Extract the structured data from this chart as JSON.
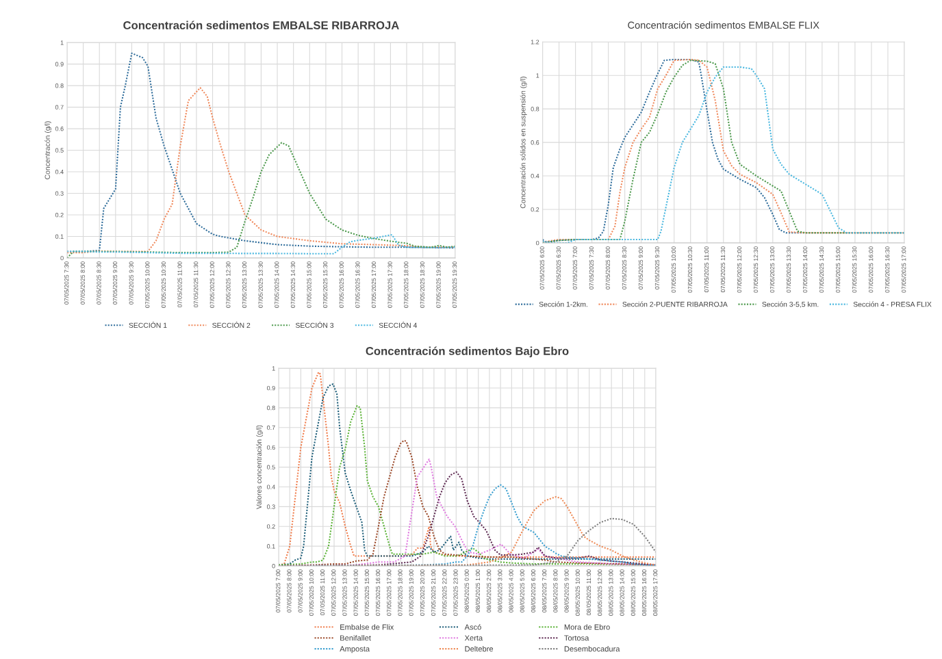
{
  "chart_data": [
    {
      "type": "line",
      "title": "Concentración sedimentos EMBALSE RIBARROJA",
      "ylabel": "Concentracón (g/l)",
      "xlim": [
        "2025-05-07T07:30",
        "2025-05-07T19:30"
      ],
      "ylim": [
        0,
        1
      ],
      "yticks": [
        0,
        0.1,
        0.2,
        0.3,
        0.4,
        0.5,
        0.6,
        0.7,
        0.8,
        0.9,
        1
      ],
      "xticks": [
        {
          "value": "2025-05-07T07:30",
          "label": "07/05/2025 7:30"
        },
        {
          "value": "2025-05-07T08:00",
          "label": "07/05/2025 8:00"
        },
        {
          "value": "2025-05-07T08:30",
          "label": "07/05/2025 8:30"
        },
        {
          "value": "2025-05-07T09:00",
          "label": "07/05/2025 9:00"
        },
        {
          "value": "2025-05-07T09:30",
          "label": "07/05/2025 9:30"
        },
        {
          "value": "2025-05-07T10:00",
          "label": "07/05/2025 10:00"
        },
        {
          "value": "2025-05-07T10:30",
          "label": "07/05/2025 10:30"
        },
        {
          "value": "2025-05-07T11:00",
          "label": "07/05/2025 11:00"
        },
        {
          "value": "2025-05-07T11:30",
          "label": "07/05/2025 11:30"
        },
        {
          "value": "2025-05-07T12:00",
          "label": "07/05/2025 12:00"
        },
        {
          "value": "2025-05-07T12:30",
          "label": "07/05/2025 12:30"
        },
        {
          "value": "2025-05-07T13:00",
          "label": "07/05/2025 13:00"
        },
        {
          "value": "2025-05-07T13:30",
          "label": "07/05/2025 13:30"
        },
        {
          "value": "2025-05-07T14:00",
          "label": "07/05/2025 14:00"
        },
        {
          "value": "2025-05-07T14:30",
          "label": "07/05/2025 14:30"
        },
        {
          "value": "2025-05-07T15:00",
          "label": "07/05/2025 15:00"
        },
        {
          "value": "2025-05-07T15:30",
          "label": "07/05/2025 15:30"
        },
        {
          "value": "2025-05-07T16:00",
          "label": "07/05/2025 16:00"
        },
        {
          "value": "2025-05-07T16:30",
          "label": "07/05/2025 16:30"
        },
        {
          "value": "2025-05-07T17:00",
          "label": "07/05/2025 17:00"
        },
        {
          "value": "2025-05-07T17:30",
          "label": "07/05/2025 17:30"
        },
        {
          "value": "2025-05-07T18:00",
          "label": "07/05/2025 18:00"
        },
        {
          "value": "2025-05-07T18:30",
          "label": "07/05/2025 18:30"
        },
        {
          "value": "2025-05-07T19:00",
          "label": "07/05/2025 19:00"
        },
        {
          "value": "2025-05-07T19:30",
          "label": "07/05/2025 19:30"
        }
      ],
      "grid": true,
      "legend": "bottom",
      "marker": "none",
      "line_style": "dotted",
      "series": [
        {
          "name": "SECCIÓN 1",
          "color": "#2f6d9b",
          "x": [
            "2025-05-07T07:30",
            "2025-05-07T08:00",
            "2025-05-07T08:30",
            "2025-05-07T08:38",
            "2025-05-07T09:00",
            "2025-05-07T09:09",
            "2025-05-07T09:18",
            "2025-05-07T09:30",
            "2025-05-07T09:50",
            "2025-05-07T10:00",
            "2025-05-07T10:15",
            "2025-05-07T10:30",
            "2025-05-07T11:00",
            "2025-05-07T11:30",
            "2025-05-07T12:00",
            "2025-05-07T12:15",
            "2025-05-07T13:00",
            "2025-05-07T14:00",
            "2025-05-07T15:00",
            "2025-05-07T16:00",
            "2025-05-07T17:00",
            "2025-05-07T18:00",
            "2025-05-07T19:00",
            "2025-05-07T19:30"
          ],
          "values": [
            0.03,
            0.03,
            0.035,
            0.23,
            0.32,
            0.7,
            0.8,
            0.95,
            0.93,
            0.89,
            0.65,
            0.52,
            0.3,
            0.16,
            0.11,
            0.1,
            0.08,
            0.062,
            0.055,
            0.052,
            0.05,
            0.05,
            0.048,
            0.047
          ]
        },
        {
          "name": "SECCIÓN 2",
          "color": "#f08a5d",
          "x": [
            "2025-05-07T07:30",
            "2025-05-07T08:00",
            "2025-05-07T08:30",
            "2025-05-07T09:00",
            "2025-05-07T09:30",
            "2025-05-07T10:00",
            "2025-05-07T10:15",
            "2025-05-07T10:30",
            "2025-05-07T10:45",
            "2025-05-07T11:00",
            "2025-05-07T11:15",
            "2025-05-07T11:37",
            "2025-05-07T11:50",
            "2025-05-07T12:00",
            "2025-05-07T12:15",
            "2025-05-07T12:30",
            "2025-05-07T13:00",
            "2025-05-07T13:30",
            "2025-05-07T14:00",
            "2025-05-07T14:30",
            "2025-05-07T15:00",
            "2025-05-07T15:30",
            "2025-05-07T16:00",
            "2025-05-07T17:00",
            "2025-05-07T18:00",
            "2025-05-07T18:30",
            "2025-05-07T19:00",
            "2025-05-07T19:30"
          ],
          "values": [
            0.025,
            0.025,
            0.032,
            0.03,
            0.03,
            0.03,
            0.08,
            0.18,
            0.25,
            0.52,
            0.73,
            0.79,
            0.75,
            0.65,
            0.52,
            0.4,
            0.2,
            0.13,
            0.1,
            0.09,
            0.08,
            0.073,
            0.066,
            0.062,
            0.057,
            0.05,
            0.05,
            0.05
          ]
        },
        {
          "name": "SECCIÓN 3",
          "color": "#4e9a4e",
          "x": [
            "2025-05-07T07:30",
            "2025-05-07T07:42",
            "2025-05-07T08:00",
            "2025-05-07T09:00",
            "2025-05-07T10:00",
            "2025-05-07T11:00",
            "2025-05-07T12:00",
            "2025-05-07T12:30",
            "2025-05-07T12:45",
            "2025-05-07T13:00",
            "2025-05-07T13:15",
            "2025-05-07T13:30",
            "2025-05-07T13:45",
            "2025-05-07T14:08",
            "2025-05-07T14:21",
            "2025-05-07T14:30",
            "2025-05-07T15:00",
            "2025-05-07T15:30",
            "2025-05-07T16:00",
            "2025-05-07T16:30",
            "2025-05-07T17:00",
            "2025-05-07T17:30",
            "2025-05-07T18:00",
            "2025-05-07T18:15",
            "2025-05-07T18:45",
            "2025-05-07T19:00",
            "2025-05-07T19:15",
            "2025-05-07T19:30"
          ],
          "values": [
            0,
            0.03,
            0.03,
            0.03,
            0.028,
            0.025,
            0.025,
            0.027,
            0.05,
            0.17,
            0.28,
            0.4,
            0.48,
            0.535,
            0.52,
            0.47,
            0.3,
            0.18,
            0.13,
            0.105,
            0.09,
            0.078,
            0.068,
            0.055,
            0.05,
            0.058,
            0.05,
            0.055
          ]
        },
        {
          "name": "SECCIÓN 4",
          "color": "#4bb8e0",
          "x": [
            "2025-05-07T07:30",
            "2025-05-07T08:00",
            "2025-05-07T08:30",
            "2025-05-07T09:00",
            "2025-05-07T10:00",
            "2025-05-07T11:00",
            "2025-05-07T12:00",
            "2025-05-07T13:00",
            "2025-05-07T14:00",
            "2025-05-07T15:00",
            "2025-05-07T15:45",
            "2025-05-07T16:00",
            "2025-05-07T16:15",
            "2025-05-07T16:30",
            "2025-05-07T17:00",
            "2025-05-07T17:30",
            "2025-05-07T17:33",
            "2025-05-07T17:45",
            "2025-05-07T18:00",
            "2025-05-07T19:00",
            "2025-05-07T19:30"
          ],
          "values": [
            0.03,
            0.03,
            0.028,
            0.028,
            0.025,
            0.022,
            0.022,
            0.021,
            0.021,
            0.02,
            0.02,
            0.05,
            0.075,
            0.082,
            0.092,
            0.107,
            0.107,
            0.06,
            0.05,
            0.048,
            0.05
          ]
        }
      ]
    },
    {
      "type": "line",
      "title": "Concentración sedimentos EMBALSE FLIX",
      "ylabel": "Concentración sólidos en suspensión (g/l)",
      "xlim": [
        "2025-05-07T06:00",
        "2025-05-07T17:00"
      ],
      "ylim": [
        0,
        1.2
      ],
      "yticks": [
        0,
        0.2,
        0.4,
        0.6,
        0.8,
        1,
        1.2
      ],
      "xticks": [
        {
          "value": "2025-05-07T06:00",
          "label": "07/05/2025 6:00"
        },
        {
          "value": "2025-05-07T06:30",
          "label": "07/05/2025 6:30"
        },
        {
          "value": "2025-05-07T07:00",
          "label": "07/05/2025 7:00"
        },
        {
          "value": "2025-05-07T07:30",
          "label": "07/05/2025 7:30"
        },
        {
          "value": "2025-05-07T08:00",
          "label": "07/05/2025 8:00"
        },
        {
          "value": "2025-05-07T08:30",
          "label": "07/05/2025 8:30"
        },
        {
          "value": "2025-05-07T09:00",
          "label": "07/05/2025 9:00"
        },
        {
          "value": "2025-05-07T09:30",
          "label": "07/05/2025 9:30"
        },
        {
          "value": "2025-05-07T10:00",
          "label": "07/05/2025 10:00"
        },
        {
          "value": "2025-05-07T10:30",
          "label": "07/05/2025 10:30"
        },
        {
          "value": "2025-05-07T11:00",
          "label": "07/05/2025 11:00"
        },
        {
          "value": "2025-05-07T11:30",
          "label": "07/05/2025 11:30"
        },
        {
          "value": "2025-05-07T12:00",
          "label": "07/05/2025 12:00"
        },
        {
          "value": "2025-05-07T12:30",
          "label": "07/05/2025 12:30"
        },
        {
          "value": "2025-05-07T13:00",
          "label": "07/05/2025 13:00"
        },
        {
          "value": "2025-05-07T13:30",
          "label": "07/05/2025 13:30"
        },
        {
          "value": "2025-05-07T14:00",
          "label": "07/05/2025 14:00"
        },
        {
          "value": "2025-05-07T14:30",
          "label": "07/05/2025 14:30"
        },
        {
          "value": "2025-05-07T15:00",
          "label": "07/05/2025 15:00"
        },
        {
          "value": "2025-05-07T15:30",
          "label": "07/05/2025 15:30"
        },
        {
          "value": "2025-05-07T16:00",
          "label": "07/05/2025 16:00"
        },
        {
          "value": "2025-05-07T16:30",
          "label": "07/05/2025 16:30"
        },
        {
          "value": "2025-05-07T17:00",
          "label": "07/05/2025 17:00"
        }
      ],
      "grid": true,
      "legend": "bottom",
      "marker": "none",
      "line_style": "dotted",
      "series": [
        {
          "name": "Sección 1-2km.",
          "color": "#2f6d9b",
          "x": [
            "2025-05-07T06:00",
            "2025-05-07T06:06",
            "2025-05-07T06:30",
            "2025-05-07T07:00",
            "2025-05-07T07:30",
            "2025-05-07T07:42",
            "2025-05-07T07:51",
            "2025-05-07T08:00",
            "2025-05-07T08:09",
            "2025-05-07T08:21",
            "2025-05-07T08:30",
            "2025-05-07T09:00",
            "2025-05-07T09:15",
            "2025-05-07T09:30",
            "2025-05-07T09:42",
            "2025-05-07T10:00",
            "2025-05-07T10:30",
            "2025-05-07T10:45",
            "2025-05-07T10:49",
            "2025-05-07T11:00",
            "2025-05-07T11:10",
            "2025-05-07T11:20",
            "2025-05-07T11:30",
            "2025-05-07T12:00",
            "2025-05-07T12:30",
            "2025-05-07T12:45",
            "2025-05-07T13:00",
            "2025-05-07T13:12",
            "2025-05-07T13:24",
            "2025-05-07T14:00",
            "2025-05-07T17:00"
          ],
          "values": [
            0.02,
            0.005,
            0.015,
            0.02,
            0.02,
            0.03,
            0.07,
            0.23,
            0.45,
            0.56,
            0.63,
            0.78,
            0.9,
            1.01,
            1.09,
            1.095,
            1.095,
            1.08,
            1.01,
            0.79,
            0.6,
            0.5,
            0.44,
            0.38,
            0.33,
            0.27,
            0.17,
            0.08,
            0.06,
            0.06,
            0.06
          ]
        },
        {
          "name": "Sección 2-PUENTE RIBARROJA",
          "color": "#f08a5d",
          "x": [
            "2025-05-07T06:00",
            "2025-05-07T06:30",
            "2025-05-07T07:00",
            "2025-05-07T08:00",
            "2025-05-07T08:12",
            "2025-05-07T08:21",
            "2025-05-07T08:30",
            "2025-05-07T08:45",
            "2025-05-07T09:00",
            "2025-05-07T09:15",
            "2025-05-07T09:30",
            "2025-05-07T09:45",
            "2025-05-07T10:00",
            "2025-05-07T10:30",
            "2025-05-07T10:45",
            "2025-05-07T11:00",
            "2025-05-07T11:15",
            "2025-05-07T11:30",
            "2025-05-07T11:45",
            "2025-05-07T12:00",
            "2025-05-07T12:30",
            "2025-05-07T13:00",
            "2025-05-07T13:15",
            "2025-05-07T13:30",
            "2025-05-07T14:00",
            "2025-05-07T17:00"
          ],
          "values": [
            0.005,
            0.02,
            0.02,
            0.02,
            0.1,
            0.3,
            0.45,
            0.6,
            0.68,
            0.75,
            0.92,
            1.0,
            1.09,
            1.095,
            1.09,
            1.05,
            0.85,
            0.55,
            0.46,
            0.41,
            0.36,
            0.29,
            0.18,
            0.065,
            0.06,
            0.06
          ]
        },
        {
          "name": "Sección 3-5,5 km.",
          "color": "#4e9a4e",
          "x": [
            "2025-05-07T06:00",
            "2025-05-07T06:30",
            "2025-05-07T07:00",
            "2025-05-07T08:00",
            "2025-05-07T08:21",
            "2025-05-07T08:30",
            "2025-05-07T08:45",
            "2025-05-07T09:00",
            "2025-05-07T09:15",
            "2025-05-07T09:30",
            "2025-05-07T09:45",
            "2025-05-07T10:00",
            "2025-05-07T10:15",
            "2025-05-07T10:30",
            "2025-05-07T11:00",
            "2025-05-07T11:15",
            "2025-05-07T11:30",
            "2025-05-07T11:45",
            "2025-05-07T12:00",
            "2025-05-07T12:30",
            "2025-05-07T13:00",
            "2025-05-07T13:15",
            "2025-05-07T13:30",
            "2025-05-07T13:45",
            "2025-05-07T14:00",
            "2025-05-07T17:00"
          ],
          "values": [
            0,
            0.015,
            0.02,
            0.02,
            0.02,
            0.13,
            0.38,
            0.6,
            0.66,
            0.77,
            0.9,
            0.99,
            1.06,
            1.09,
            1.085,
            1.07,
            0.92,
            0.6,
            0.47,
            0.4,
            0.34,
            0.31,
            0.19,
            0.07,
            0.06,
            0.06
          ]
        },
        {
          "name": "Sección 4 - PRESA FLIX",
          "color": "#4bb8e0",
          "x": [
            "2025-05-07T06:00",
            "2025-05-07T06:15",
            "2025-05-07T06:45",
            "2025-05-07T07:00",
            "2025-05-07T08:00",
            "2025-05-07T09:00",
            "2025-05-07T09:30",
            "2025-05-07T09:36",
            "2025-05-07T10:00",
            "2025-05-07T10:15",
            "2025-05-07T10:30",
            "2025-05-07T10:45",
            "2025-05-07T11:00",
            "2025-05-07T11:15",
            "2025-05-07T11:30",
            "2025-05-07T12:00",
            "2025-05-07T12:21",
            "2025-05-07T12:30",
            "2025-05-07T12:45",
            "2025-05-07T13:00",
            "2025-05-07T13:15",
            "2025-05-07T13:30",
            "2025-05-07T14:00",
            "2025-05-07T14:30",
            "2025-05-07T15:00",
            "2025-05-07T15:15",
            "2025-05-07T17:00"
          ],
          "values": [
            0.01,
            0,
            0,
            0.02,
            0.02,
            0.02,
            0.02,
            0.07,
            0.45,
            0.6,
            0.68,
            0.76,
            0.9,
            0.99,
            1.05,
            1.05,
            1.04,
            1.0,
            0.92,
            0.56,
            0.47,
            0.41,
            0.35,
            0.29,
            0.09,
            0.06,
            0.06
          ]
        }
      ]
    },
    {
      "type": "line",
      "title": "Concentración sedimentos Bajo Ebro",
      "ylabel": "Valores concentración (g/l)",
      "xlim": [
        "2025-05-07T07:00",
        "2025-05-08T17:00"
      ],
      "ylim": [
        0,
        1
      ],
      "yticks": [
        0,
        0.1,
        0.2,
        0.3,
        0.4,
        0.5,
        0.6,
        0.7,
        0.8,
        0.9,
        1
      ],
      "xticks": [
        {
          "value": "2025-05-07T07:00",
          "label": "07/05/2025 7:00"
        },
        {
          "value": "2025-05-07T08:00",
          "label": "07/05/2025 8:00"
        },
        {
          "value": "2025-05-07T09:00",
          "label": "07/05/2025 9:00"
        },
        {
          "value": "2025-05-07T10:00",
          "label": "07/05/2025 10:00"
        },
        {
          "value": "2025-05-07T11:00",
          "label": "07/05/2025 11:00"
        },
        {
          "value": "2025-05-07T12:00",
          "label": "07/05/2025 12:00"
        },
        {
          "value": "2025-05-07T13:00",
          "label": "07/05/2025 13:00"
        },
        {
          "value": "2025-05-07T14:00",
          "label": "07/05/2025 14:00"
        },
        {
          "value": "2025-05-07T15:00",
          "label": "07/05/2025 15:00"
        },
        {
          "value": "2025-05-07T16:00",
          "label": "07/05/2025 16:00"
        },
        {
          "value": "2025-05-07T17:00",
          "label": "07/05/2025 17:00"
        },
        {
          "value": "2025-05-07T18:00",
          "label": "07/05/2025 18:00"
        },
        {
          "value": "2025-05-07T19:00",
          "label": "07/05/2025 19:00"
        },
        {
          "value": "2025-05-07T20:00",
          "label": "07/05/2025 20:00"
        },
        {
          "value": "2025-05-07T21:00",
          "label": "07/05/2025 21:00"
        },
        {
          "value": "2025-05-07T22:00",
          "label": "07/05/2025 22:00"
        },
        {
          "value": "2025-05-07T23:00",
          "label": "07/05/2025 23:00"
        },
        {
          "value": "2025-05-08T00:00",
          "label": "08/05/2025 0:00"
        },
        {
          "value": "2025-05-08T01:00",
          "label": "08/05/2025 1:00"
        },
        {
          "value": "2025-05-08T02:00",
          "label": "08/05/2025 2:00"
        },
        {
          "value": "2025-05-08T03:00",
          "label": "08/05/2025 3:00"
        },
        {
          "value": "2025-05-08T04:00",
          "label": "08/05/2025 4:00"
        },
        {
          "value": "2025-05-08T05:00",
          "label": "08/05/2025 5:00"
        },
        {
          "value": "2025-05-08T06:00",
          "label": "08/05/2025 6:00"
        },
        {
          "value": "2025-05-08T07:00",
          "label": "08/05/2025 7:00"
        },
        {
          "value": "2025-05-08T08:00",
          "label": "08/05/2025 8:00"
        },
        {
          "value": "2025-05-08T09:00",
          "label": "08/05/2025 9:00"
        },
        {
          "value": "2025-05-08T10:00",
          "label": "08/05/2025 10:00"
        },
        {
          "value": "2025-05-08T11:00",
          "label": "08/05/2025 11:00"
        },
        {
          "value": "2025-05-08T12:00",
          "label": "08/05/2025 12:00"
        },
        {
          "value": "2025-05-08T13:00",
          "label": "08/05/2025 13:00"
        },
        {
          "value": "2025-05-08T14:00",
          "label": "08/05/2025 14:00"
        },
        {
          "value": "2025-05-08T15:00",
          "label": "08/05/2025 15:00"
        },
        {
          "value": "2025-05-08T16:00",
          "label": "08/05/2025 16:00"
        },
        {
          "value": "2025-05-08T17:00",
          "label": "08/05/2025 17:00"
        }
      ],
      "grid": true,
      "legend": "bottom",
      "marker": "none",
      "line_style": "dotted",
      "series": [
        {
          "name": "Embalse de Flix",
          "color": "#f07f4f",
          "x": [
            "2025-05-07T07:00",
            "2025-05-07T07:30",
            "2025-05-07T08:00",
            "2025-05-07T08:30",
            "2025-05-07T09:00",
            "2025-05-07T09:30",
            "2025-05-07T10:00",
            "2025-05-07T10:36",
            "2025-05-07T10:45",
            "2025-05-07T11:12",
            "2025-05-07T11:30",
            "2025-05-07T11:45",
            "2025-05-07T12:00",
            "2025-05-07T12:30",
            "2025-05-07T13:00",
            "2025-05-07T13:30",
            "2025-05-07T13:48",
            "2025-05-07T14:00",
            "2025-05-07T16:00",
            "2025-05-07T17:00",
            "2025-05-07T18:00",
            "2025-05-07T19:00",
            "2025-05-07T19:30",
            "2025-05-07T20:00",
            "2025-05-07T20:34",
            "2025-05-07T20:42",
            "2025-05-07T21:00",
            "2025-05-07T22:00",
            "2025-05-07T23:00",
            "2025-05-08T00:00",
            "2025-05-08T02:00",
            "2025-05-08T04:00",
            "2025-05-08T06:00",
            "2025-05-08T10:00",
            "2025-05-08T14:00",
            "2025-05-08T17:00"
          ],
          "values": [
            0.005,
            0.01,
            0.1,
            0.35,
            0.6,
            0.75,
            0.9,
            0.98,
            0.97,
            0.75,
            0.6,
            0.45,
            0.38,
            0.32,
            0.2,
            0.1,
            0.05,
            0.05,
            0.05,
            0.05,
            0.05,
            0.055,
            0.09,
            0.09,
            0.2,
            0.1,
            0.07,
            0.055,
            0.05,
            0.05,
            0.045,
            0.045,
            0.045,
            0.045,
            0.045,
            0.045
          ]
        },
        {
          "name": "Ascó",
          "color": "#1f5f7a",
          "x": [
            "2025-05-07T07:00",
            "2025-05-07T08:00",
            "2025-05-07T08:30",
            "2025-05-07T09:00",
            "2025-05-07T09:15",
            "2025-05-07T09:45",
            "2025-05-07T10:00",
            "2025-05-07T10:30",
            "2025-05-07T11:00",
            "2025-05-07T11:30",
            "2025-05-07T11:54",
            "2025-05-07T12:15",
            "2025-05-07T12:30",
            "2025-05-07T13:00",
            "2025-05-07T13:30",
            "2025-05-07T14:00",
            "2025-05-07T14:30",
            "2025-05-07T14:45",
            "2025-05-07T15:00",
            "2025-05-07T16:00",
            "2025-05-07T17:00",
            "2025-05-07T18:00",
            "2025-05-07T19:00",
            "2025-05-07T20:00",
            "2025-05-07T20:30",
            "2025-05-07T21:00",
            "2025-05-07T21:30",
            "2025-05-07T22:30",
            "2025-05-07T22:45",
            "2025-05-07T23:15",
            "2025-05-07T23:30",
            "2025-05-08T00:00",
            "2025-05-08T01:00",
            "2025-05-08T02:00",
            "2025-05-08T04:00",
            "2025-05-08T06:00",
            "2025-05-08T10:00",
            "2025-05-08T17:00"
          ],
          "values": [
            0.005,
            0.01,
            0.03,
            0.04,
            0.1,
            0.4,
            0.55,
            0.7,
            0.85,
            0.91,
            0.92,
            0.87,
            0.7,
            0.47,
            0.38,
            0.3,
            0.22,
            0.08,
            0.05,
            0.05,
            0.05,
            0.05,
            0.05,
            0.07,
            0.1,
            0.07,
            0.08,
            0.15,
            0.08,
            0.12,
            0.08,
            0.05,
            0.04,
            0.035,
            0.035,
            0.035,
            0.035,
            0.035
          ]
        },
        {
          "name": "Mora de Ebro",
          "color": "#5cb338",
          "x": [
            "2025-05-07T07:00",
            "2025-05-07T09:00",
            "2025-05-07T10:00",
            "2025-05-07T10:30",
            "2025-05-07T11:00",
            "2025-05-07T11:30",
            "2025-05-07T12:00",
            "2025-05-07T12:30",
            "2025-05-07T13:00",
            "2025-05-07T13:30",
            "2025-05-07T14:04",
            "2025-05-07T14:21",
            "2025-05-07T14:45",
            "2025-05-07T15:00",
            "2025-05-07T15:30",
            "2025-05-07T16:00",
            "2025-05-07T16:30",
            "2025-05-07T17:00",
            "2025-05-07T17:15",
            "2025-05-07T18:00",
            "2025-05-07T19:00",
            "2025-05-07T20:00",
            "2025-05-07T21:00",
            "2025-05-07T22:00",
            "2025-05-07T23:00",
            "2025-05-07T23:30",
            "2025-05-08T00:30",
            "2025-05-08T01:00",
            "2025-05-08T01:30",
            "2025-05-08T02:00",
            "2025-05-08T03:00",
            "2025-05-08T04:00",
            "2025-05-08T06:00",
            "2025-05-08T10:00",
            "2025-05-08T17:00"
          ],
          "values": [
            0.005,
            0.01,
            0.02,
            0.02,
            0.03,
            0.1,
            0.3,
            0.5,
            0.59,
            0.73,
            0.81,
            0.8,
            0.6,
            0.43,
            0.35,
            0.3,
            0.2,
            0.1,
            0.06,
            0.06,
            0.06,
            0.06,
            0.07,
            0.05,
            0.05,
            0.06,
            0.09,
            0.07,
            0.04,
            0.03,
            0.02,
            0.015,
            0.01,
            0.01,
            0.005
          ]
        },
        {
          "name": "Benifallet",
          "color": "#9c4a2a",
          "x": [
            "2025-05-07T07:00",
            "2025-05-07T10:00",
            "2025-05-07T12:00",
            "2025-05-07T13:00",
            "2025-05-07T14:00",
            "2025-05-07T15:00",
            "2025-05-07T15:30",
            "2025-05-07T16:00",
            "2025-05-07T16:30",
            "2025-05-07T17:00",
            "2025-05-07T17:30",
            "2025-05-07T18:00",
            "2025-05-07T18:18",
            "2025-05-07T18:30",
            "2025-05-07T19:00",
            "2025-05-07T19:30",
            "2025-05-07T20:00",
            "2025-05-07T20:30",
            "2025-05-07T21:00",
            "2025-05-07T21:30",
            "2025-05-07T22:00",
            "2025-05-07T23:00",
            "2025-05-08T00:00",
            "2025-05-08T02:00",
            "2025-05-08T04:00",
            "2025-05-08T05:00",
            "2025-05-08T06:00",
            "2025-05-08T07:00",
            "2025-05-08T08:00",
            "2025-05-08T10:00",
            "2025-05-08T14:00",
            "2025-05-08T17:00"
          ],
          "values": [
            0,
            0.005,
            0.01,
            0.01,
            0.025,
            0.03,
            0.06,
            0.2,
            0.35,
            0.45,
            0.55,
            0.62,
            0.635,
            0.63,
            0.55,
            0.4,
            0.3,
            0.25,
            0.15,
            0.08,
            0.06,
            0.055,
            0.05,
            0.045,
            0.045,
            0.04,
            0.035,
            0.03,
            0.02,
            0.015,
            0.01,
            0.005
          ]
        },
        {
          "name": "Xerta",
          "color": "#e07be0",
          "x": [
            "2025-05-07T07:00",
            "2025-05-07T14:00",
            "2025-05-07T16:00",
            "2025-05-07T17:24",
            "2025-05-07T18:24",
            "2025-05-07T18:48",
            "2025-05-07T19:30",
            "2025-05-07T20:34",
            "2025-05-07T20:45",
            "2025-05-07T21:15",
            "2025-05-07T22:12",
            "2025-05-07T22:54",
            "2025-05-07T23:36",
            "2025-05-08T00:06",
            "2025-05-08T01:06",
            "2025-05-08T02:00",
            "2025-05-08T03:03",
            "2025-05-08T03:54",
            "2025-05-08T05:06",
            "2025-05-08T06:24",
            "2025-05-08T07:00",
            "2025-05-08T08:00",
            "2025-05-08T10:00",
            "2025-05-08T13:00",
            "2025-05-08T17:00"
          ],
          "values": [
            0,
            0.005,
            0.02,
            0.02,
            0.05,
            0.2,
            0.45,
            0.54,
            0.5,
            0.35,
            0.25,
            0.2,
            0.12,
            0.07,
            0.06,
            0.08,
            0.11,
            0.06,
            0.04,
            0.085,
            0.05,
            0.04,
            0.02,
            0.01,
            0.005
          ]
        },
        {
          "name": "Tortosa",
          "color": "#5e2a52",
          "x": [
            "2025-05-07T07:00",
            "2025-05-07T16:00",
            "2025-05-07T18:00",
            "2025-05-07T19:00",
            "2025-05-07T19:48",
            "2025-05-07T20:30",
            "2025-05-07T21:00",
            "2025-05-07T21:30",
            "2025-05-07T22:00",
            "2025-05-07T22:30",
            "2025-05-07T23:02",
            "2025-05-07T23:30",
            "2025-05-08T00:00",
            "2025-05-08T00:36",
            "2025-05-08T01:06",
            "2025-05-08T01:42",
            "2025-05-08T02:30",
            "2025-05-08T03:00",
            "2025-05-08T04:00",
            "2025-05-08T05:00",
            "2025-05-08T06:00",
            "2025-05-08T06:24",
            "2025-05-08T07:00",
            "2025-05-08T08:00",
            "2025-05-08T09:00",
            "2025-05-08T10:00",
            "2025-05-08T11:00",
            "2025-05-08T12:00",
            "2025-05-08T14:00",
            "2025-05-08T16:00",
            "2025-05-08T17:00"
          ],
          "values": [
            0,
            0.005,
            0.015,
            0.02,
            0.05,
            0.15,
            0.25,
            0.35,
            0.42,
            0.46,
            0.475,
            0.44,
            0.33,
            0.25,
            0.22,
            0.18,
            0.08,
            0.055,
            0.055,
            0.06,
            0.07,
            0.095,
            0.05,
            0.04,
            0.04,
            0.04,
            0.05,
            0.03,
            0.02,
            0.01,
            0.005
          ]
        },
        {
          "name": "Amposta",
          "color": "#3a9fd0",
          "x": [
            "2025-05-07T07:00",
            "2025-05-07T20:00",
            "2025-05-07T22:00",
            "2025-05-07T23:00",
            "2025-05-07T23:30",
            "2025-05-08T00:00",
            "2025-05-08T00:30",
            "2025-05-08T01:00",
            "2025-05-08T01:30",
            "2025-05-08T02:00",
            "2025-05-08T02:30",
            "2025-05-08T03:00",
            "2025-05-08T03:30",
            "2025-05-08T04:00",
            "2025-05-08T04:30",
            "2025-05-08T05:00",
            "2025-05-08T06:00",
            "2025-05-08T07:00",
            "2025-05-08T08:06",
            "2025-05-08T08:30",
            "2025-05-08T09:00",
            "2025-05-08T10:00",
            "2025-05-08T11:00",
            "2025-05-08T12:00",
            "2025-05-08T13:00",
            "2025-05-08T14:00",
            "2025-05-08T15:00",
            "2025-05-08T16:00",
            "2025-05-08T17:00"
          ],
          "values": [
            0,
            0.005,
            0.01,
            0.02,
            0.02,
            0.05,
            0.1,
            0.2,
            0.28,
            0.35,
            0.39,
            0.41,
            0.39,
            0.32,
            0.25,
            0.2,
            0.17,
            0.1,
            0.06,
            0.05,
            0.045,
            0.04,
            0.035,
            0.03,
            0.025,
            0.02,
            0.01,
            0.005,
            0.003
          ]
        },
        {
          "name": "Deltebre",
          "color": "#ee8a55",
          "x": [
            "2025-05-07T07:00",
            "2025-05-08T00:00",
            "2025-05-08T02:00",
            "2025-05-08T03:00",
            "2025-05-08T04:00",
            "2025-05-08T05:00",
            "2025-05-08T06:00",
            "2025-05-08T07:00",
            "2025-05-08T08:00",
            "2025-05-08T08:30",
            "2025-05-08T09:00",
            "2025-05-08T09:30",
            "2025-05-08T10:00",
            "2025-05-08T10:30",
            "2025-05-08T11:00",
            "2025-05-08T12:00",
            "2025-05-08T13:00",
            "2025-05-08T14:00",
            "2025-05-08T15:00",
            "2025-05-08T16:00",
            "2025-05-08T17:00"
          ],
          "values": [
            0,
            0.005,
            0.02,
            0.04,
            0.07,
            0.18,
            0.28,
            0.33,
            0.35,
            0.34,
            0.3,
            0.25,
            0.2,
            0.15,
            0.13,
            0.1,
            0.08,
            0.05,
            0.03,
            0.015,
            0.005
          ]
        },
        {
          "name": "Desembocadura",
          "color": "#7f7f7f",
          "x": [
            "2025-05-07T07:00",
            "2025-05-08T06:00",
            "2025-05-08T08:00",
            "2025-05-08T09:00",
            "2025-05-08T10:00",
            "2025-05-08T11:00",
            "2025-05-08T12:00",
            "2025-05-08T13:00",
            "2025-05-08T14:00",
            "2025-05-08T15:00",
            "2025-05-08T16:00",
            "2025-05-08T17:00"
          ],
          "values": [
            0,
            0.005,
            0.02,
            0.05,
            0.13,
            0.18,
            0.22,
            0.24,
            0.235,
            0.21,
            0.15,
            0.07
          ]
        }
      ]
    }
  ]
}
